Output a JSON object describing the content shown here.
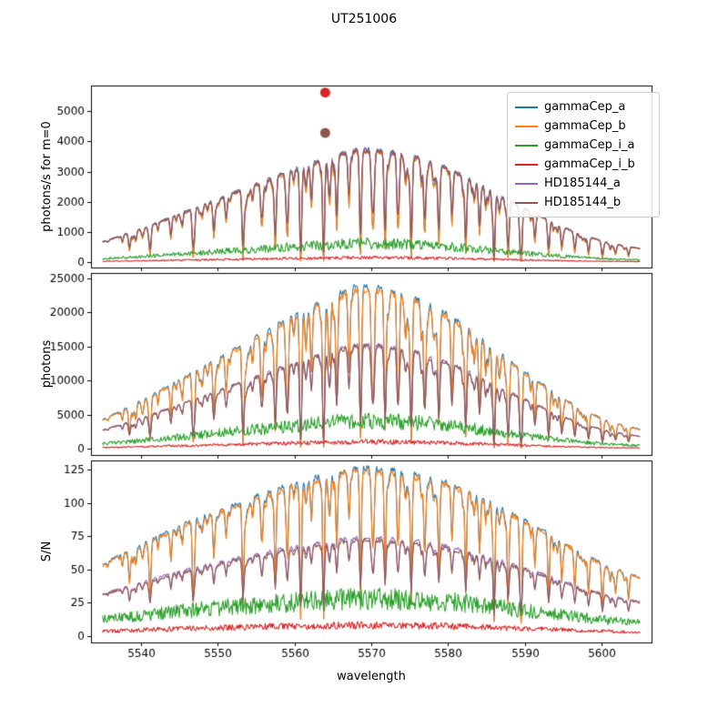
{
  "figure": {
    "title": "UT251006"
  },
  "chart_data": {
    "type": "line",
    "title": "UT251006",
    "xlabel": "wavelength",
    "xlim": [
      5533.5,
      5606.5
    ],
    "xticks": [
      5540,
      5550,
      5560,
      5570,
      5580,
      5590,
      5600
    ],
    "x_start": 5535,
    "x_end": 5605,
    "x_sample_step": 0.1,
    "legend_position": "upper right",
    "series": [
      {
        "name": "gammaCep_a",
        "color": "#1f77b4",
        "line_depth_scale": 1.0,
        "noise": 0.018
      },
      {
        "name": "gammaCep_b",
        "color": "#ff7f0e",
        "line_depth_scale": 1.0,
        "noise": 0.025
      },
      {
        "name": "gammaCep_i_a",
        "color": "#2ca02c",
        "line_depth_scale": 0.0,
        "noise": 0.3
      },
      {
        "name": "gammaCep_i_b",
        "color": "#d62728",
        "line_depth_scale": 0.0,
        "noise": 0.35
      },
      {
        "name": "HD185144_a",
        "color": "#9467bd",
        "line_depth_scale": 0.8,
        "noise": 0.018
      },
      {
        "name": "HD185144_b",
        "color": "#8c564b",
        "line_depth_scale": 0.8,
        "noise": 0.025
      }
    ],
    "envelope": [
      [
        5535,
        0.18
      ],
      [
        5538,
        0.25
      ],
      [
        5541,
        0.32
      ],
      [
        5544,
        0.4
      ],
      [
        5547,
        0.48
      ],
      [
        5550,
        0.56
      ],
      [
        5553,
        0.64
      ],
      [
        5556,
        0.72
      ],
      [
        5559,
        0.8
      ],
      [
        5562,
        0.87
      ],
      [
        5565,
        0.94
      ],
      [
        5568,
        1.0
      ],
      [
        5571,
        0.995
      ],
      [
        5574,
        0.96
      ],
      [
        5577,
        0.91
      ],
      [
        5580,
        0.83
      ],
      [
        5583,
        0.73
      ],
      [
        5586,
        0.62
      ],
      [
        5589,
        0.51
      ],
      [
        5592,
        0.41
      ],
      [
        5595,
        0.31
      ],
      [
        5598,
        0.23
      ],
      [
        5601,
        0.17
      ],
      [
        5605,
        0.12
      ]
    ],
    "absorption_lines": [
      [
        5538.5,
        0.55
      ],
      [
        5541.2,
        0.8
      ],
      [
        5543.9,
        0.35
      ],
      [
        5546.8,
        0.9
      ],
      [
        5549.5,
        0.6
      ],
      [
        5551.1,
        0.4
      ],
      [
        5553.3,
        0.95
      ],
      [
        5555.8,
        0.5
      ],
      [
        5557.5,
        0.85
      ],
      [
        5559.1,
        0.6
      ],
      [
        5560.8,
        0.9
      ],
      [
        5562.2,
        0.45
      ],
      [
        5563.8,
        0.98
      ],
      [
        5565.5,
        0.7
      ],
      [
        5567.1,
        0.5
      ],
      [
        5568.6,
        0.93
      ],
      [
        5570.3,
        0.6
      ],
      [
        5571.8,
        0.88
      ],
      [
        5573.5,
        0.45
      ],
      [
        5575.2,
        0.96
      ],
      [
        5577.0,
        0.55
      ],
      [
        5578.8,
        0.75
      ],
      [
        5580.5,
        0.5
      ],
      [
        5582.3,
        0.9
      ],
      [
        5584.1,
        0.65
      ],
      [
        5586.0,
        0.97
      ],
      [
        5587.8,
        0.8
      ],
      [
        5589.5,
        0.95
      ],
      [
        5591.3,
        0.6
      ],
      [
        5593.1,
        0.85
      ],
      [
        5594.8,
        0.45
      ],
      [
        5596.5,
        0.7
      ],
      [
        5598.3,
        0.55
      ],
      [
        5600.1,
        0.8
      ],
      [
        5601.8,
        0.5
      ],
      [
        5603.5,
        0.65
      ]
    ],
    "noise_seed": 20251006,
    "weak_line_count": 90,
    "panels": [
      {
        "ylabel": "photons/s for m=0",
        "ylim": [
          -180,
          5850
        ],
        "yticks": [
          0,
          1000,
          2000,
          3000,
          4000,
          5000
        ],
        "sqrt": false,
        "peaks": [
          3750,
          3680,
          620,
          150,
          3730,
          3700
        ],
        "markers": [
          {
            "x": 5564,
            "y": 5620,
            "color": "#d62728"
          },
          {
            "x": 5564,
            "y": 4280,
            "color": "#8c564b"
          }
        ]
      },
      {
        "ylabel": "photons",
        "ylim": [
          -900,
          25800
        ],
        "yticks": [
          0,
          5000,
          10000,
          15000,
          20000,
          25000
        ],
        "sqrt": false,
        "peaks": [
          23800,
          23300,
          4100,
          1050,
          15300,
          15100
        ],
        "markers": []
      },
      {
        "ylabel": "S/N",
        "ylim": [
          -5,
          132
        ],
        "yticks": [
          0,
          25,
          50,
          75,
          100,
          125
        ],
        "sqrt": true,
        "peaks": [
          126,
          124,
          28,
          8,
          74,
          72
        ],
        "markers": []
      }
    ]
  }
}
